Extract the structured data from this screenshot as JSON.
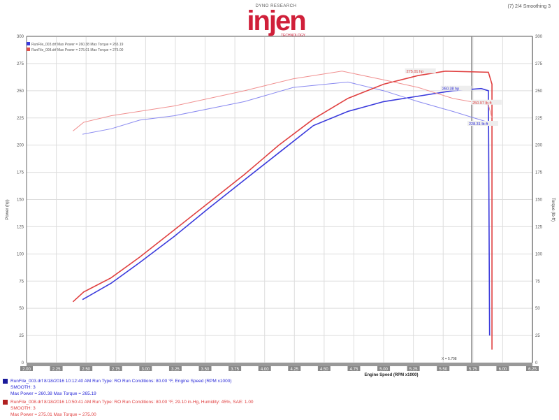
{
  "header": {
    "logo_top": "DYNO RESEARCH",
    "logo": "injen",
    "logo_bottom": "TECHNOLOGY",
    "top_right": "(7) 2/4  Smoothing 3"
  },
  "legend_top": [
    {
      "label": "RunFile_003.drf  Max Power = 260.38   Max Torque = 265.19",
      "color": "#3a3adc"
    },
    {
      "label": "RunFile_008.drf  Max Power = 275.01   Max Torque = 275.00",
      "color": "#e0504a"
    }
  ],
  "runs": [
    {
      "line1": "RunFile_003.drf  8/18/2016 10:12:40 AM  Run Type: RO  Run Conditions: 80.00 °F, Engine Speed (RPM x1000)",
      "line2": "SMOOTH: 3",
      "line3": "Max Power = 260.38  Max Torque = 265.19",
      "color": "#2a2ad8"
    },
    {
      "line1": "RunFile_008.drf  8/18/2016 10:50:41 AM  Run Type: RO  Run Conditions: 80.00 °F, 29.10 in-Hg, Humidity: 45%, SAE: 1.00",
      "line2": "SMOOTH: 3",
      "line3": "Max Power = 275.01  Max Torque = 275.00",
      "color": "#e04040"
    }
  ],
  "chart_data": {
    "type": "line",
    "xlabel": "Engine Speed (RPM x1000)",
    "ylabel": "Power (hp)",
    "y2label": "Torque (lb-ft)",
    "xlim": [
      2.0,
      6.25
    ],
    "ylim": [
      0,
      300
    ],
    "x_ticks": [
      "2.00",
      "2.25",
      "2.50",
      "2.75",
      "3.00",
      "3.25",
      "3.50",
      "3.75",
      "4.00",
      "4.25",
      "4.50",
      "4.75",
      "5.00",
      "5.25",
      "5.50",
      "5.75",
      "6.00",
      "6.25"
    ],
    "y_ticks": [
      "0",
      "25",
      "50",
      "75",
      "100",
      "125",
      "150",
      "175",
      "200",
      "225",
      "250",
      "275",
      "300"
    ],
    "grid": true,
    "cursor_label": "X = 5.708",
    "annotations": [
      {
        "text": "275.01 hp",
        "series": 2,
        "color": "#e04040"
      },
      {
        "text": "260.38 hp",
        "series": 0,
        "color": "#2a2ad8"
      },
      {
        "text": "250.97 lb-ft",
        "series": 3,
        "color": "#e04040"
      },
      {
        "text": "228.31 lb-ft",
        "series": 1,
        "color": "#2a2ad8"
      }
    ],
    "series": [
      {
        "kind": "power",
        "color": "#3a3adc",
        "x": [
          2.47,
          2.71,
          2.95,
          3.24,
          3.53,
          3.83,
          4.12,
          4.41,
          4.7,
          5.0,
          5.29,
          5.58,
          5.82,
          5.88,
          5.89
        ],
        "y": [
          58,
          73,
          92,
          116,
          142,
          168,
          193,
          218,
          231,
          240,
          245,
          250,
          252,
          250,
          25
        ]
      },
      {
        "kind": "torque",
        "color": "#8a8af0",
        "x": [
          2.47,
          2.71,
          2.95,
          3.24,
          3.83,
          4.24,
          4.7,
          5.0,
          5.29,
          5.58,
          5.88
        ],
        "y": [
          210,
          215,
          223,
          227,
          240,
          253,
          258,
          250,
          240,
          231,
          221
        ]
      },
      {
        "kind": "power",
        "color": "#e04040",
        "x": [
          2.39,
          2.48,
          2.71,
          2.95,
          3.24,
          3.53,
          3.83,
          4.12,
          4.41,
          4.7,
          5.0,
          5.29,
          5.52,
          5.88,
          5.91,
          5.91
        ],
        "y": [
          56,
          65,
          78,
          97,
          122,
          147,
          173,
          200,
          224,
          243,
          256,
          264,
          268,
          267,
          256,
          12
        ]
      },
      {
        "kind": "torque",
        "color": "#f09090",
        "x": [
          2.39,
          2.48,
          2.71,
          3.24,
          3.83,
          4.24,
          4.65,
          5.0,
          5.29,
          5.58,
          5.88,
          5.91
        ],
        "y": [
          213,
          221,
          227,
          236,
          250,
          261,
          268,
          260,
          253,
          243,
          237,
          225
        ]
      }
    ]
  }
}
